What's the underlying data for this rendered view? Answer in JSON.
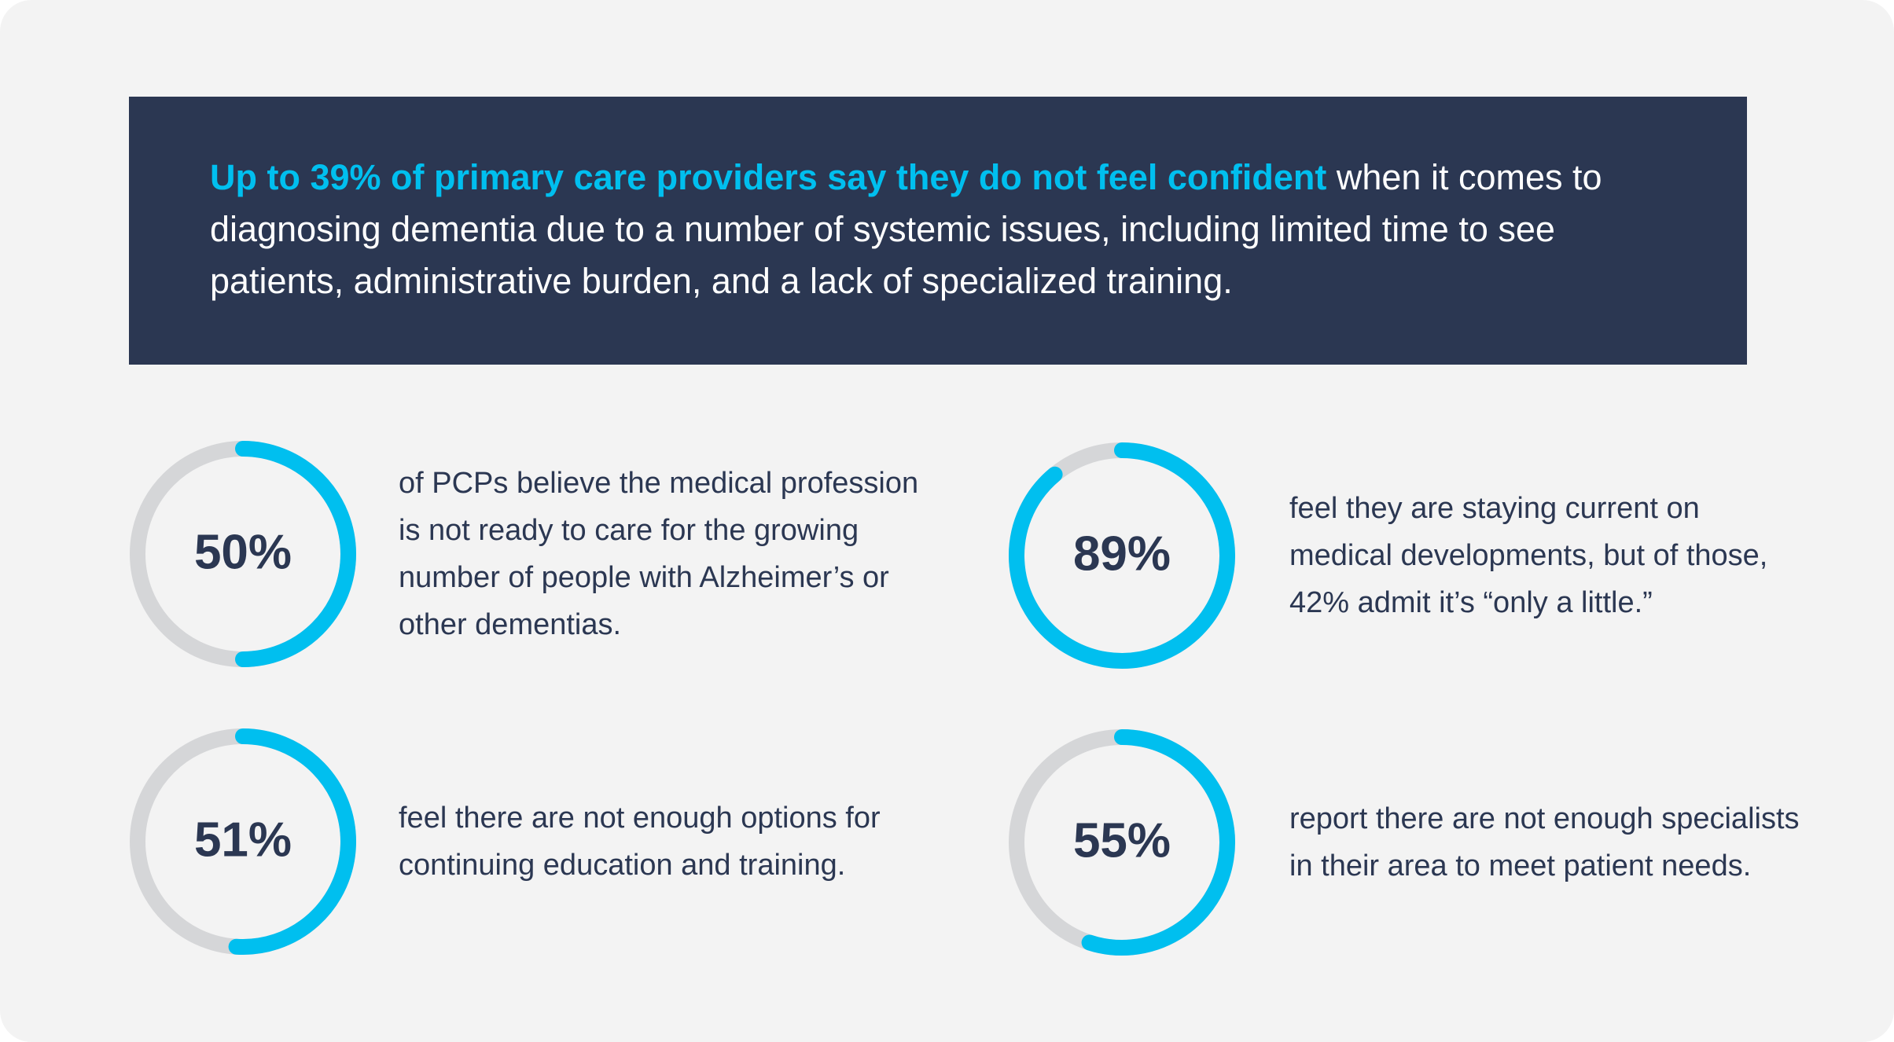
{
  "header": {
    "highlight": "Up to 39% of primary care providers say they do not feel confident",
    "text": "when it comes to diagnosing dementia due to a number of systemic issues, including limited time to see patients, administrative burden, and a lack of specialized training."
  },
  "chart_data": [
    {
      "type": "donut",
      "values": [
        50
      ],
      "value_labels": [
        "50%"
      ],
      "ylim": [
        0,
        100
      ],
      "color": "#00bfef",
      "track_color": "#d5d6d8",
      "caption": "of PCPs believe the medical profession is not ready to care for the growing number of people with Alzheimer’s or other dementias."
    },
    {
      "type": "donut",
      "values": [
        89
      ],
      "value_labels": [
        "89%"
      ],
      "ylim": [
        0,
        100
      ],
      "color": "#00bfef",
      "track_color": "#d5d6d8",
      "caption": "feel they are staying current on medical developments, but of those, 42% admit it’s “only a little.”"
    },
    {
      "type": "donut",
      "values": [
        51
      ],
      "value_labels": [
        "51%"
      ],
      "ylim": [
        0,
        100
      ],
      "color": "#00bfef",
      "track_color": "#d5d6d8",
      "caption": "feel there are not enough options for continuing education and training."
    },
    {
      "type": "donut",
      "values": [
        55
      ],
      "value_labels": [
        "55%"
      ],
      "ylim": [
        0,
        100
      ],
      "color": "#00bfef",
      "track_color": "#d5d6d8",
      "caption": "report there are not enough specialists in their area to meet patient needs."
    }
  ]
}
